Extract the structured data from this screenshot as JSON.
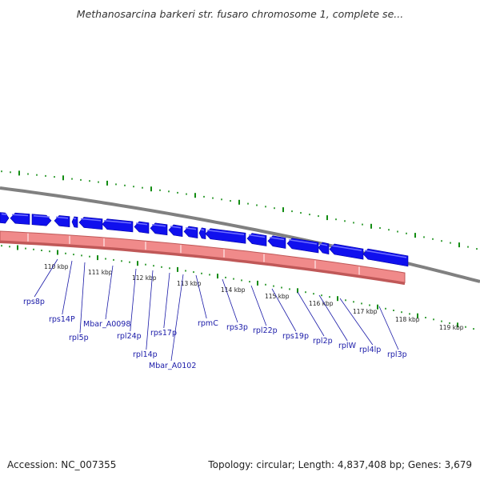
{
  "title": "Methanosarcina barkeri str. fusaro chromosome 1, complete se...",
  "footer": {
    "accession": "Accession: NC_007355",
    "topology": "Topology: circular; Length: 4,837,408 bp; Genes: 3,679"
  },
  "colors": {
    "gene_arrow": "#1010ee",
    "gene_arrow_highlight": "#6f6fff",
    "backbone": "#808080",
    "feature_band": "#f08a8a",
    "feature_band_shadow": "#c05858",
    "gc_ticks": "#128c12",
    "label_line": "#1a1aa8"
  },
  "kbp_ticks": [
    "110 kbp",
    "111 kbp",
    "112 kbp",
    "113 kbp",
    "114 kbp",
    "115 kbp",
    "116 kbp",
    "117 kbp",
    "118 kbp",
    "119 kbp"
  ],
  "genes": [
    "rps8p",
    "rps14P",
    "rpl5p",
    "Mbar_A0098",
    "rpl24p",
    "rpl14p",
    "rps17p",
    "Mbar_A0102",
    "rpmC",
    "rps3p",
    "rpl22p",
    "rps19p",
    "rpl2p",
    "rplW",
    "rpl4lp",
    "rpl3p"
  ]
}
